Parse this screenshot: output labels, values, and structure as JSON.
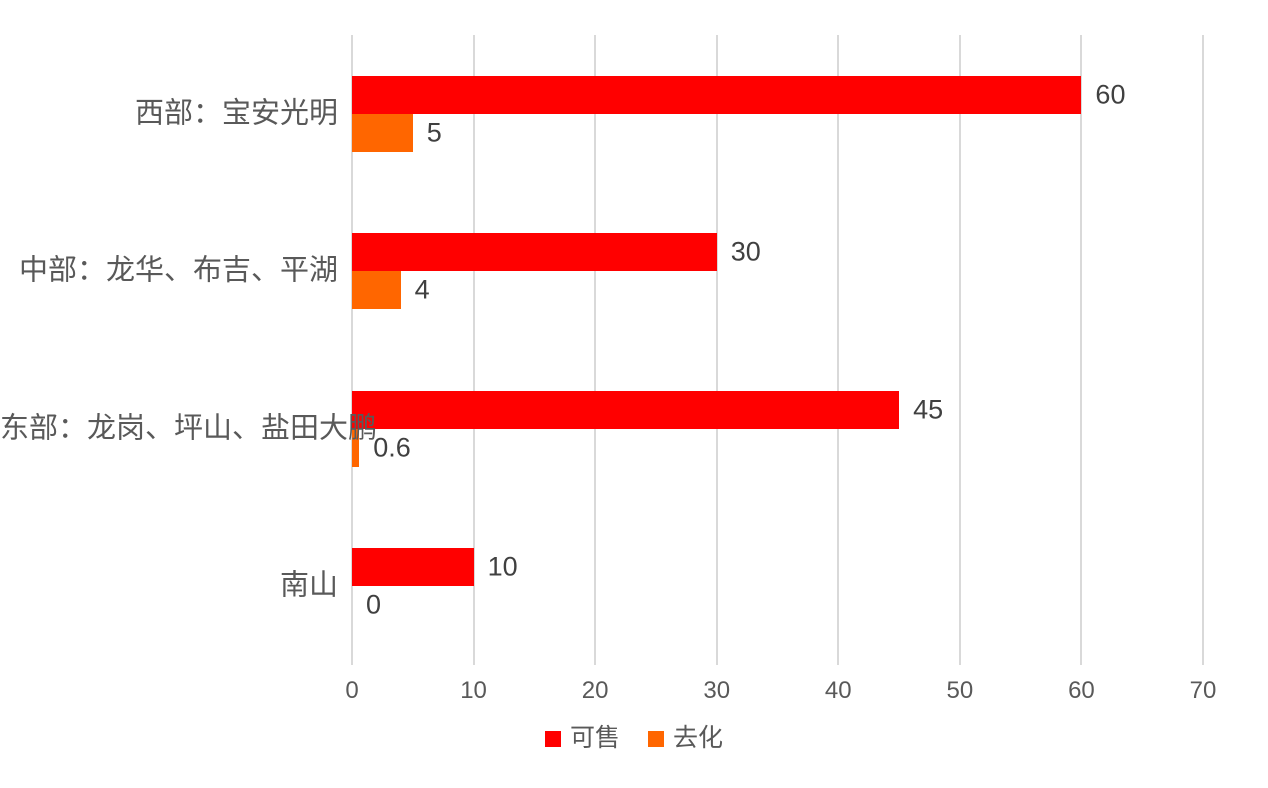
{
  "chart_data": {
    "type": "bar",
    "orientation": "horizontal",
    "title": "",
    "xlabel": "",
    "ylabel": "",
    "categories": [
      "西部：宝安光明",
      "中部：龙华、布吉、平湖",
      "东部：龙岗、坪山、盐田大鹏",
      "南山"
    ],
    "series": [
      {
        "name": "可售",
        "color": "#FF0000",
        "values": [
          60,
          30,
          45,
          10
        ]
      },
      {
        "name": "去化",
        "color": "#FF6600",
        "values": [
          5,
          4,
          0.6,
          0
        ]
      }
    ],
    "data_labels": [
      [
        "60",
        "30",
        "45",
        "10"
      ],
      [
        "5",
        "4",
        "0.6",
        "0"
      ]
    ],
    "xlim": [
      0,
      70
    ],
    "xticks": [
      "0",
      "10",
      "20",
      "30",
      "40",
      "50",
      "60",
      "70"
    ],
    "grid": true,
    "legend_position": "bottom",
    "colors": {
      "gridline": "#D9D9D9",
      "tick_label": "#595959",
      "category_label": "#595959",
      "data_label": "#404040",
      "background": "#FFFFFF"
    }
  }
}
